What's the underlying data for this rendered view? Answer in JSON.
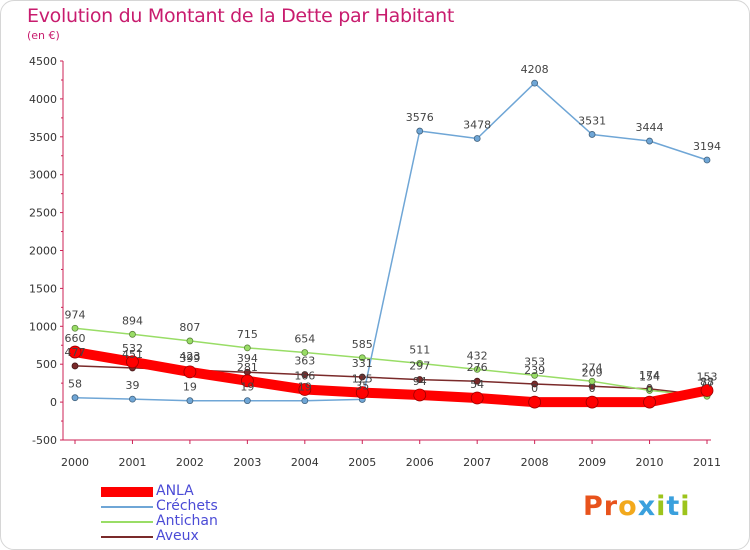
{
  "header": {
    "title": "Evolution du Montant de la Dette par Habitant",
    "subtitle": "(en €)"
  },
  "logo": {
    "text": "Proxiti",
    "letter_colors": [
      "#e8531c",
      "#e8531c",
      "#f2a91d",
      "#3aa0dd",
      "#9dc41c",
      "#3aa0dd",
      "#9dc41c"
    ]
  },
  "chart_data": {
    "type": "line",
    "title": "Evolution du Montant de la Dette par Habitant",
    "subtitle": "(en €)",
    "x": [
      "2000",
      "2001",
      "2002",
      "2003",
      "2004",
      "2005",
      "2006",
      "2007",
      "2008",
      "2009",
      "2010",
      "2011"
    ],
    "ylim": [
      -500,
      4500
    ],
    "yticks": [
      "-500",
      "0",
      "500",
      "1000",
      "1500",
      "2000",
      "2500",
      "3000",
      "3500",
      "4000",
      "4500"
    ],
    "grid": false,
    "legend_position": "bottom-left",
    "series": [
      {
        "name": "ANLA",
        "color": "#ff0000",
        "values": [
          660,
          532,
          399,
          281,
          166,
          125,
          94,
          54,
          0,
          0,
          0,
          153
        ],
        "labels": [
          "660",
          "532",
          "399",
          "281",
          "166",
          "125",
          "94",
          "54",
          "0",
          "0",
          "0",
          "153"
        ]
      },
      {
        "name": "Créchets",
        "color": "#6fa6d6",
        "values": [
          58,
          39,
          19,
          19,
          19,
          35,
          3576,
          3478,
          4208,
          3531,
          3444,
          3194
        ],
        "labels": [
          "58",
          "39",
          "19",
          "19",
          "19",
          "35",
          "3576",
          "3478",
          "4208",
          "3531",
          "3444",
          "3194"
        ]
      },
      {
        "name": "Antichan",
        "color": "#99dd66",
        "values": [
          974,
          894,
          807,
          715,
          654,
          585,
          511,
          432,
          353,
          274,
          154,
          77
        ],
        "labels": [
          "974",
          "894",
          "807",
          "715",
          "654",
          "585",
          "511",
          "432",
          "353",
          "274",
          "154",
          "77"
        ]
      },
      {
        "name": "Aveux",
        "color": "#7a2a2a",
        "values": [
          477,
          451,
          423,
          394,
          363,
          331,
          297,
          276,
          239,
          209,
          174,
          88
        ],
        "labels": [
          "477",
          "451",
          "423",
          "394",
          "363",
          "331",
          "297",
          "276",
          "239",
          "209",
          "174",
          "88"
        ]
      }
    ]
  }
}
